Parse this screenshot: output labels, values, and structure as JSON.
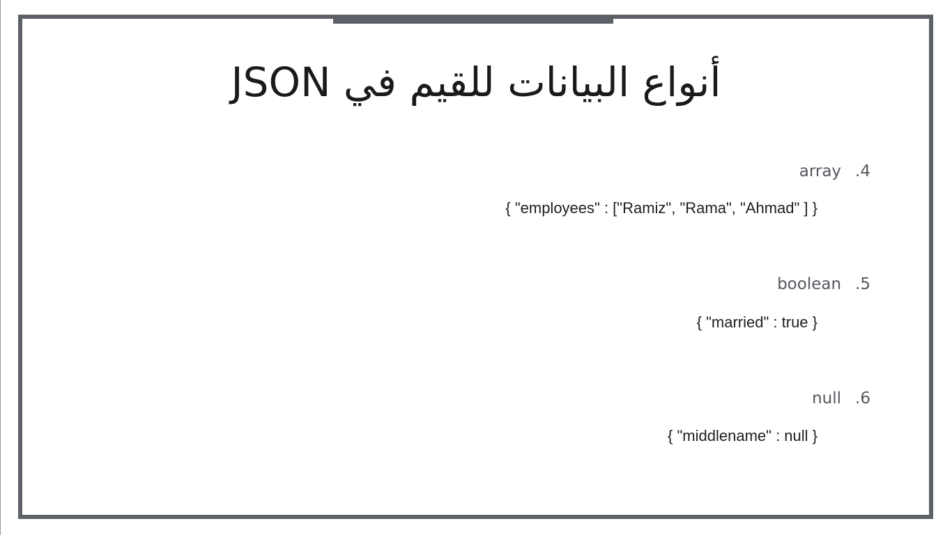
{
  "slide": {
    "title": "أنواع البيانات للقيم في JSON",
    "items": [
      {
        "number": ".4",
        "type": "array",
        "example": "{ \"employees\" : [\"Ramiz\", \"Rama\", \"Ahmad\" ] }"
      },
      {
        "number": ".5",
        "type": "boolean",
        "example": "{ \"married\" : true }"
      },
      {
        "number": ".6",
        "type": "null",
        "example": "{ \"middlename\" : null }"
      }
    ]
  },
  "colors": {
    "frame": "#5e6068",
    "title_text": "#1a1a1a",
    "heading_text": "#55575e",
    "example_text": "#1e1e1e"
  }
}
